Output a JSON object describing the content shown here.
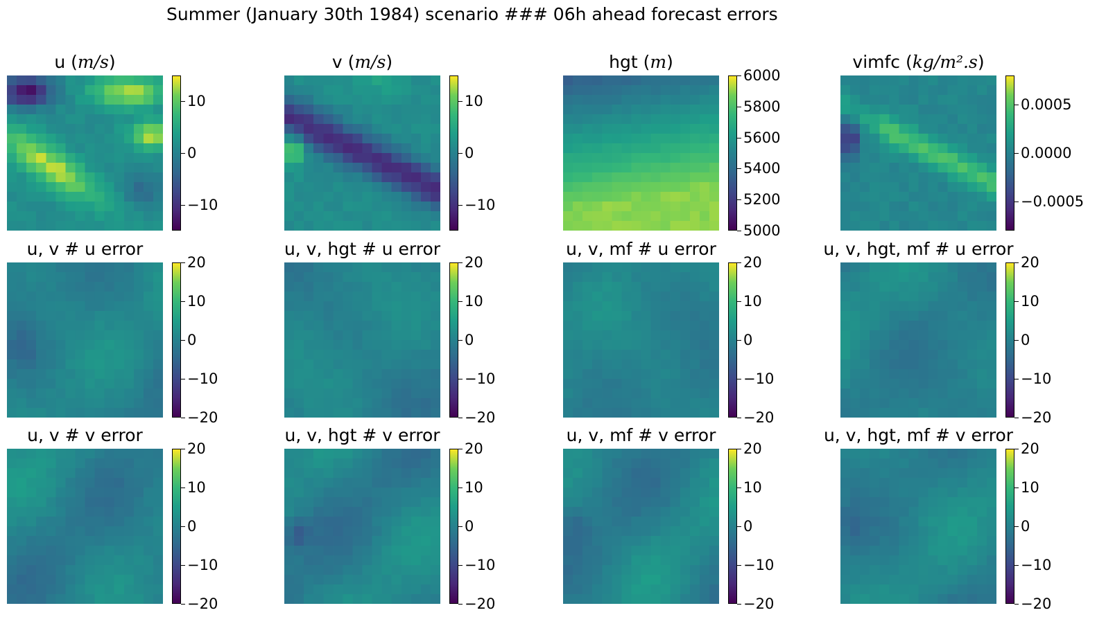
{
  "title": "Summer (January 30th 1984) scenario ### 06h ahead forecast errors",
  "colormap": "viridis",
  "colors": [
    "#440154",
    "#482878",
    "#3e4989",
    "#31688e",
    "#26828e",
    "#1f9e89",
    "#35b779",
    "#6ece58",
    "#fde725"
  ],
  "chart_data": [
    {
      "type": "heatmap",
      "title_text": "u (",
      "title_unit": "m/s",
      "title_close": ")",
      "clim": [
        -15,
        15
      ],
      "ticks": [
        10,
        0,
        -10
      ],
      "tick_labels": [
        "10",
        "0",
        "−10"
      ]
    },
    {
      "type": "heatmap",
      "title_text": "v (",
      "title_unit": "m/s",
      "title_close": ")",
      "clim": [
        -15,
        15
      ],
      "ticks": [
        10,
        0,
        -10
      ],
      "tick_labels": [
        "10",
        "0",
        "−10"
      ]
    },
    {
      "type": "heatmap",
      "title_text": "hgt (",
      "title_unit": "m",
      "title_close": ")",
      "clim": [
        5000,
        6000
      ],
      "ticks": [
        6000,
        5800,
        5600,
        5400,
        5200,
        5000
      ],
      "tick_labels": [
        "6000",
        "5800",
        "5600",
        "5400",
        "5200",
        "5000"
      ]
    },
    {
      "type": "heatmap",
      "title_text": "vimfc (",
      "title_unit": "kg/m².s",
      "title_close": ")",
      "clim": [
        -0.0008,
        0.0008
      ],
      "ticks": [
        0.0005,
        0.0,
        -0.0005
      ],
      "tick_labels": [
        "0.0005",
        "0.0000",
        "−0.0005"
      ]
    },
    {
      "type": "heatmap",
      "title_text": "u, v # u error",
      "title_unit": "",
      "title_close": "",
      "clim": [
        -20,
        20
      ],
      "ticks": [
        20,
        10,
        0,
        -10,
        -20
      ],
      "tick_labels": [
        "20",
        "10",
        "0",
        "−10",
        "−20"
      ]
    },
    {
      "type": "heatmap",
      "title_text": "u, v, hgt # u error",
      "title_unit": "",
      "title_close": "",
      "clim": [
        -20,
        20
      ],
      "ticks": [
        20,
        10,
        0,
        -10,
        -20
      ],
      "tick_labels": [
        "20",
        "10",
        "0",
        "−10",
        "−20"
      ]
    },
    {
      "type": "heatmap",
      "title_text": "u, v, mf # u error",
      "title_unit": "",
      "title_close": "",
      "clim": [
        -20,
        20
      ],
      "ticks": [
        20,
        10,
        0,
        -10,
        -20
      ],
      "tick_labels": [
        "20",
        "10",
        "0",
        "−10",
        "−20"
      ]
    },
    {
      "type": "heatmap",
      "title_text": "u, v, hgt, mf # u error",
      "title_unit": "",
      "title_close": "",
      "clim": [
        -20,
        20
      ],
      "ticks": [
        20,
        10,
        0,
        -10,
        -20
      ],
      "tick_labels": [
        "20",
        "10",
        "0",
        "−10",
        "−20"
      ]
    },
    {
      "type": "heatmap",
      "title_text": "u, v # v error",
      "title_unit": "",
      "title_close": "",
      "clim": [
        -20,
        20
      ],
      "ticks": [
        20,
        10,
        0,
        -10,
        -20
      ],
      "tick_labels": [
        "20",
        "10",
        "0",
        "−10",
        "−20"
      ]
    },
    {
      "type": "heatmap",
      "title_text": "u, v, hgt # v error",
      "title_unit": "",
      "title_close": "",
      "clim": [
        -20,
        20
      ],
      "ticks": [
        20,
        10,
        0,
        -10,
        -20
      ],
      "tick_labels": [
        "20",
        "10",
        "0",
        "−10",
        "−20"
      ]
    },
    {
      "type": "heatmap",
      "title_text": "u, v, mf # v error",
      "title_unit": "",
      "title_close": "",
      "clim": [
        -20,
        20
      ],
      "ticks": [
        20,
        10,
        0,
        -10,
        -20
      ],
      "tick_labels": [
        "20",
        "10",
        "0",
        "−10",
        "−20"
      ]
    },
    {
      "type": "heatmap",
      "title_text": "u, v, hgt, mf # v error",
      "title_unit": "",
      "title_close": "",
      "clim": [
        -20,
        20
      ],
      "ticks": [
        20,
        10,
        0,
        -10,
        -20
      ],
      "tick_labels": [
        "20",
        "10",
        "0",
        "−10",
        "−20"
      ]
    }
  ]
}
